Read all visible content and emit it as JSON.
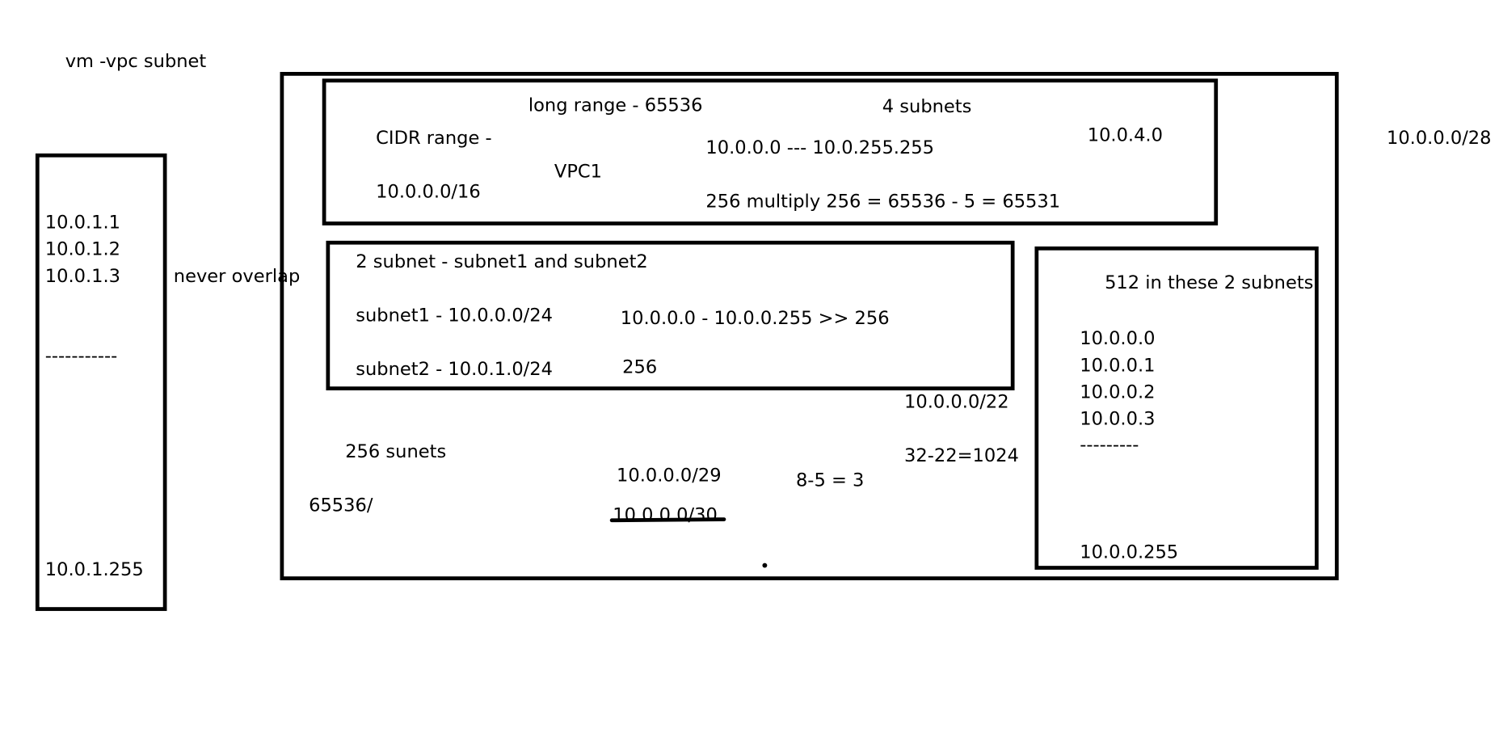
{
  "page_title": "vm -vpc  subnet",
  "left_box": {
    "ips": [
      "10.0.1.1",
      "10.0.1.2",
      "10.0.1.3"
    ],
    "separator": "-----------",
    "last_ip": "10.0.1.255"
  },
  "never_overlap": "never overlap",
  "vpc_box": {
    "cidr_label": "CIDR range -",
    "cidr_value": "10.0.0.0/16",
    "long_range": "long range - 65536",
    "vpc_name": "VPC1",
    "four_subnets": "4 subnets",
    "range": "10.0.0.0 --- 10.0.255.255",
    "calc": "256 multiply 256 = 65536 - 5 = 65531",
    "ip_4": "10.0.4.0"
  },
  "subnet_box": {
    "title": "2 subnet - subnet1 and subnet2",
    "subnet1": "subnet1 - 10.0.0.0/24",
    "subnet1_range": "10.0.0.0 - 10.0.0.255 >> 256",
    "subnet2": "subnet2 - 10.0.1.0/24",
    "subnet2_count": "256"
  },
  "right_inner_box": {
    "title": "512 in these 2 subnets",
    "ips": [
      "10.0.0.0",
      "10.0.0.1",
      "10.0.0.2",
      "10.0.0.3"
    ],
    "separator": "---------",
    "last_ip": "10.0.0.255"
  },
  "notes": {
    "cidr22": "10.0.0.0/22",
    "calc22": "32-22=1024",
    "sunets": "256 sunets",
    "n65536": "65536/",
    "cidr29": "10.0.0.0/29",
    "cidr30": "10.0.0.0/30",
    "calc3": "8-5 = 3",
    "outside_right": "10.0.0.0/28"
  }
}
